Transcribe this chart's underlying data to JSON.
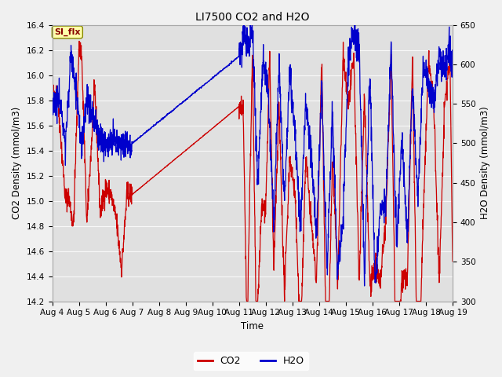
{
  "title": "LI7500 CO2 and H2O",
  "xlabel": "Time",
  "ylabel_left": "CO2 Density (mmol/m3)",
  "ylabel_right": "H2O Density (mmol/m3)",
  "ylim_left": [
    14.2,
    16.4
  ],
  "ylim_right": [
    300,
    650
  ],
  "xlim": [
    0,
    15
  ],
  "xtick_labels": [
    "Aug 4",
    "Aug 5",
    "Aug 6",
    "Aug 7",
    "Aug 8",
    "Aug 9",
    "Aug 10",
    "Aug 11",
    "Aug 12",
    "Aug 13",
    "Aug 14",
    "Aug 15",
    "Aug 16",
    "Aug 17",
    "Aug 18",
    "Aug 19"
  ],
  "bg_color": "#f0f0f0",
  "plot_bg_color": "#e0e0e0",
  "grid_color": "#f8f8f8",
  "co2_color": "#cc0000",
  "h2o_color": "#0000cc",
  "legend_co2": "CO2",
  "legend_h2o": "H2O",
  "si_flx_label": "SI_flx",
  "si_flx_bg": "#ffffaa",
  "si_flx_border": "#888800",
  "si_flx_fg": "#880000",
  "yticks_left": [
    14.2,
    14.4,
    14.6,
    14.8,
    15.0,
    15.2,
    15.4,
    15.6,
    15.8,
    16.0,
    16.2,
    16.4
  ],
  "yticks_right": [
    300,
    350,
    400,
    450,
    500,
    550,
    600,
    650
  ]
}
